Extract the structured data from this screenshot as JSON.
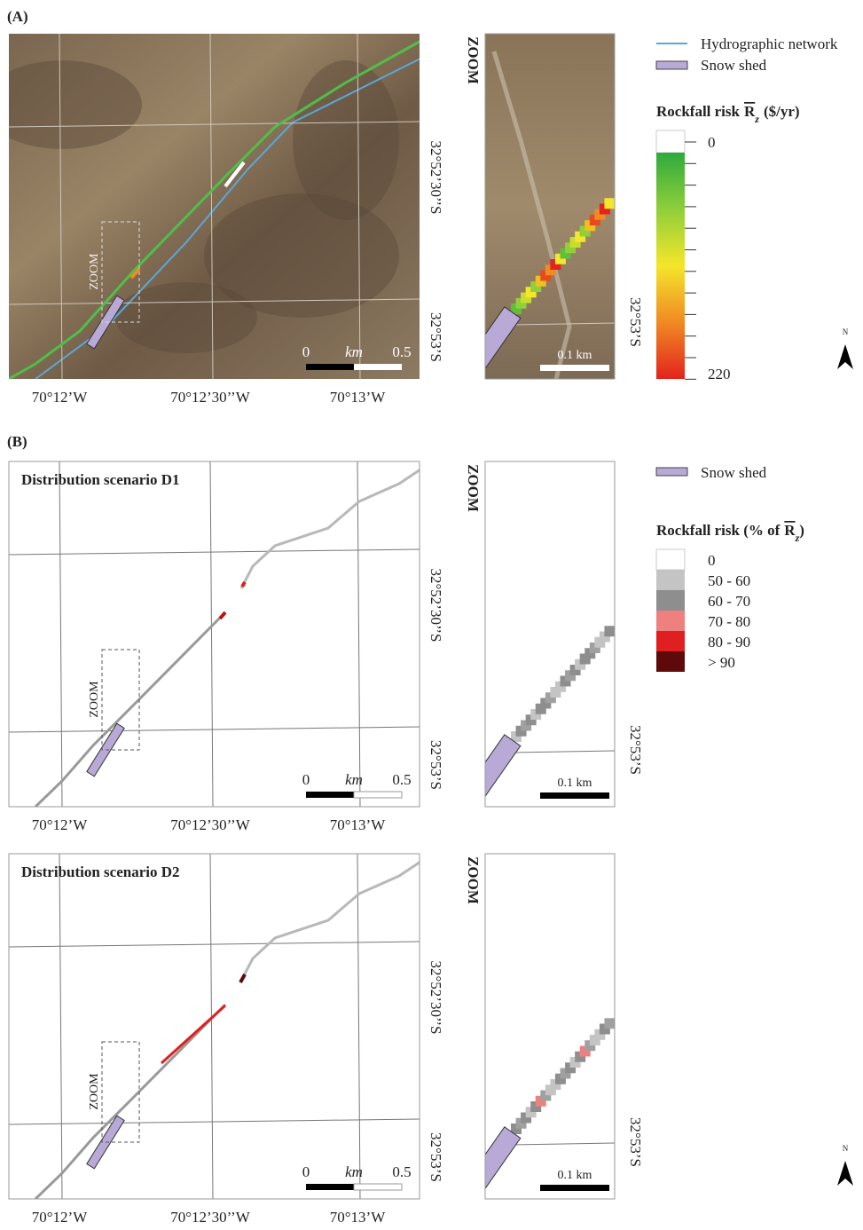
{
  "panel_a": {
    "label": "(A)",
    "map": {
      "lat_labels": [
        "32°52’30’’S",
        "32°53’S"
      ],
      "lon_labels": [
        "70°12’W",
        "70°12’30’’W",
        "70°13’W"
      ],
      "scale_bar": [
        "0",
        "km",
        "0.5"
      ],
      "zoom_box_label": "ZOOM"
    },
    "zoom": {
      "title": "ZOOM",
      "lat_label": "32°53’S",
      "scale_bar": "0.1 km"
    },
    "legend": {
      "items": [
        {
          "label": "Hydrographic network",
          "color": "#5aa7d8"
        },
        {
          "label": "Snow shed",
          "color": "#b9a9d6"
        }
      ],
      "colorbar": {
        "title": "Rockfall risk",
        "symbol": "R",
        "subscript": "z",
        "unit": "($/yr)",
        "min_label": "0",
        "max_label": "220",
        "colors": [
          "#ffffff",
          "#2eaa3c",
          "#8fcf3a",
          "#f4e62a",
          "#f08a23",
          "#e2231e"
        ]
      }
    },
    "north": "N"
  },
  "panel_b": {
    "label": "(B)",
    "scenarios": [
      {
        "title": "Distribution scenario D1",
        "map": {
          "lat_labels": [
            "32°52’30’’S",
            "32°53’S"
          ],
          "lon_labels": [
            "70°12’W",
            "70°12’30’’W",
            "70°13’W"
          ],
          "scale_bar": [
            "0",
            "km",
            "0.5"
          ],
          "zoom_box_label": "ZOOM"
        },
        "zoom": {
          "title": "ZOOM",
          "lat_label": "32°53’S",
          "scale_bar": "0.1 km"
        }
      },
      {
        "title": "Distribution scenario D2",
        "map": {
          "lat_labels": [
            "32°52’30’’S",
            "32°53’S"
          ],
          "lon_labels": [
            "70°12’W",
            "70°12’30’’W",
            "70°13’W"
          ],
          "scale_bar": [
            "0",
            "km",
            "0.5"
          ],
          "zoom_box_label": "ZOOM"
        },
        "zoom": {
          "title": "ZOOM",
          "lat_label": "32°53’S",
          "scale_bar": "0.1 km"
        }
      }
    ],
    "legend": {
      "items": [
        {
          "label": "Snow shed",
          "color": "#b9a9d6"
        }
      ],
      "classes": {
        "title": "Rockfall risk (% of",
        "symbol": "R",
        "subscript": "z",
        "title_close": ")",
        "items": [
          {
            "label": "0",
            "color": "#ffffff"
          },
          {
            "label": "50 - 60",
            "color": "#c4c4c4"
          },
          {
            "label": "60 - 70",
            "color": "#8e8e8e"
          },
          {
            "label": "70 - 80",
            "color": "#ee8080"
          },
          {
            "label": "80 - 90",
            "color": "#e02020"
          },
          {
            "label": "> 90",
            "color": "#5e0a0a"
          }
        ]
      }
    },
    "north": "N"
  }
}
